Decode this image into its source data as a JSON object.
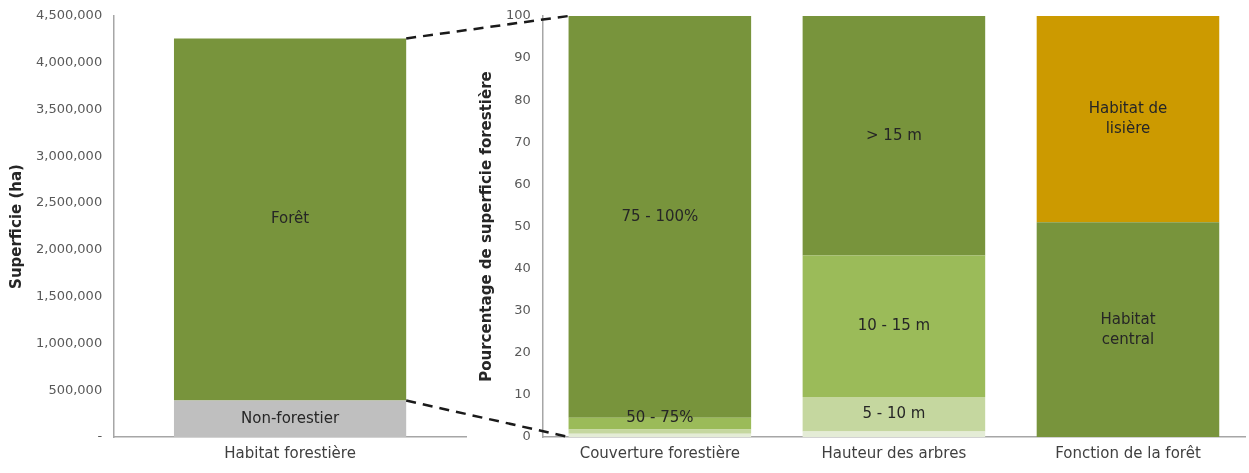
{
  "chart_data": [
    {
      "type": "bar",
      "stacked": true,
      "ylabel": "Superficie (ha)",
      "categories": [
        "Habitat forestière"
      ],
      "ylim": [
        0,
        4500000
      ],
      "yticks": [
        {
          "value": 0,
          "label": "-"
        },
        {
          "value": 500000,
          "label": "500,000"
        },
        {
          "value": 1000000,
          "label": "1,000,000"
        },
        {
          "value": 1500000,
          "label": "1,500,000"
        },
        {
          "value": 2000000,
          "label": "2,000,000"
        },
        {
          "value": 2500000,
          "label": "2,500,000"
        },
        {
          "value": 3000000,
          "label": "3,000,000"
        },
        {
          "value": 3500000,
          "label": "3,500,000"
        },
        {
          "value": 4000000,
          "label": "4,000,000"
        },
        {
          "value": 4500000,
          "label": "4,500,000"
        }
      ],
      "series": [
        {
          "name": "Non-forestier",
          "color": "#bfbfbf",
          "values": [
            390000
          ]
        },
        {
          "name": "Forêt",
          "color": "#78943c",
          "values": [
            3870000
          ]
        }
      ]
    },
    {
      "type": "bar",
      "stacked": true,
      "ylabel": "Pourcentage de superficie forestière",
      "categories": [
        "Couverture forestière",
        "Hauteur des arbres",
        "Fonction de la forêt"
      ],
      "ylim": [
        0,
        100
      ],
      "yticks": [
        0,
        10,
        20,
        30,
        40,
        50,
        60,
        70,
        80,
        90,
        100
      ],
      "series": [
        {
          "color": "#e4ecd6",
          "values": [
            0.8,
            null,
            null
          ]
        },
        {
          "color": "#c5d79f",
          "values": [
            1.0,
            null,
            null
          ]
        },
        {
          "name": "50 - 75%",
          "color": "#9bbb59",
          "values": [
            2.8,
            null,
            null
          ]
        },
        {
          "name": "75 - 100%",
          "color": "#78943c",
          "values": [
            95.4,
            null,
            null
          ]
        },
        {
          "color": "#e4ecd6",
          "values": [
            null,
            1.3,
            null
          ]
        },
        {
          "name": "5 - 10 m",
          "color": "#c5d79f",
          "values": [
            null,
            8.2,
            null
          ]
        },
        {
          "name": "10 - 15 m",
          "color": "#9bbb59",
          "values": [
            null,
            33.6,
            null
          ]
        },
        {
          "name": "> 15 m",
          "color": "#78943c",
          "values": [
            null,
            56.9,
            null
          ]
        },
        {
          "name": "Habitat central",
          "color": "#78943c",
          "values": [
            null,
            null,
            51
          ]
        },
        {
          "name": "Habitat de lisière",
          "color": "#cc9a00",
          "values": [
            null,
            null,
            49
          ]
        }
      ]
    }
  ]
}
